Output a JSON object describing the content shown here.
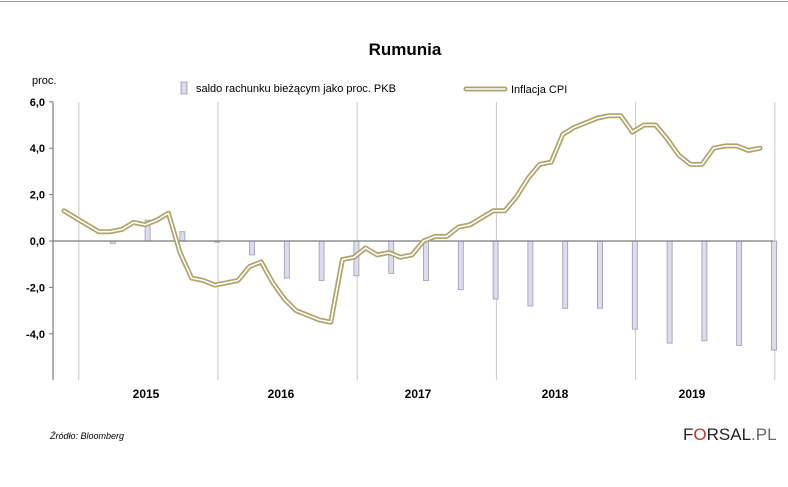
{
  "chart_data": {
    "type": "bar+line",
    "title": "Rumunia",
    "ylabel": "proc.",
    "ylim": [
      -6.0,
      6.0
    ],
    "yticks": [
      "6,0",
      "4,0",
      "2,0",
      "0,0",
      "-2,0",
      "-4,0"
    ],
    "ytick_values": [
      6,
      4,
      2,
      0,
      -2,
      -4
    ],
    "years": [
      "2015",
      "2016",
      "2017",
      "2018",
      "2019"
    ],
    "grid": "vertical lines at year boundaries",
    "legend_position": "top",
    "colors": {
      "bars_fill": "#dcdcec",
      "bars_stroke": "#9a9ab0",
      "line_outer": "#b0a36a",
      "line_inner": "#ffffff",
      "axis": "#7a7a7a",
      "text": "#000000"
    },
    "series": [
      {
        "name": "saldo rachunku bieżącym jako proc. PKB",
        "kind": "bar",
        "frequency": "quarterly, bar at end of quarter (month index)",
        "points": [
          {
            "m": 3,
            "v": -0.1
          },
          {
            "m": 6,
            "v": 0.9
          },
          {
            "m": 9,
            "v": 0.4
          },
          {
            "m": 12,
            "v": -0.05
          },
          {
            "m": 15,
            "v": -0.6
          },
          {
            "m": 18,
            "v": -1.6
          },
          {
            "m": 21,
            "v": -1.7
          },
          {
            "m": 24,
            "v": -1.5
          },
          {
            "m": 27,
            "v": -1.4
          },
          {
            "m": 30,
            "v": -1.7
          },
          {
            "m": 33,
            "v": -2.1
          },
          {
            "m": 36,
            "v": -2.5
          },
          {
            "m": 39,
            "v": -2.8
          },
          {
            "m": 42,
            "v": -2.9
          },
          {
            "m": 45,
            "v": -2.9
          },
          {
            "m": 48,
            "v": -3.8
          },
          {
            "m": 51,
            "v": -4.4
          },
          {
            "m": 54,
            "v": -4.3
          },
          {
            "m": 57,
            "v": -4.5
          },
          {
            "m": 60,
            "v": -4.7
          }
        ]
      },
      {
        "name": "Inflacja CPI",
        "kind": "line",
        "frequency": "monthly, Dec 2014 to Dec 2019 (month index 0-60)",
        "values": [
          1.3,
          1.0,
          0.7,
          0.4,
          0.4,
          0.5,
          0.8,
          0.7,
          0.9,
          1.2,
          -0.5,
          -1.6,
          -1.7,
          -1.9,
          -1.8,
          -1.7,
          -1.1,
          -0.9,
          -1.8,
          -2.5,
          -3.0,
          -3.2,
          -3.4,
          -3.5,
          -0.8,
          -0.7,
          -0.3,
          -0.6,
          -0.5,
          -0.7,
          -0.6,
          0.0,
          0.2,
          0.2,
          0.6,
          0.7,
          1.0,
          1.3,
          1.3,
          1.9,
          2.7,
          3.3,
          3.4,
          4.6,
          4.9,
          5.1,
          5.3,
          5.4,
          5.4,
          4.7,
          5.0,
          5.0,
          4.4,
          3.7,
          3.3,
          3.3,
          4.0,
          4.1,
          4.1,
          3.9,
          4.0
        ]
      }
    ]
  },
  "source_note": "Źródło: Bloomberg",
  "logo": {
    "prefix": "F",
    "middle": "O",
    "suffix": "RSAL",
    "tld": ".PL"
  }
}
